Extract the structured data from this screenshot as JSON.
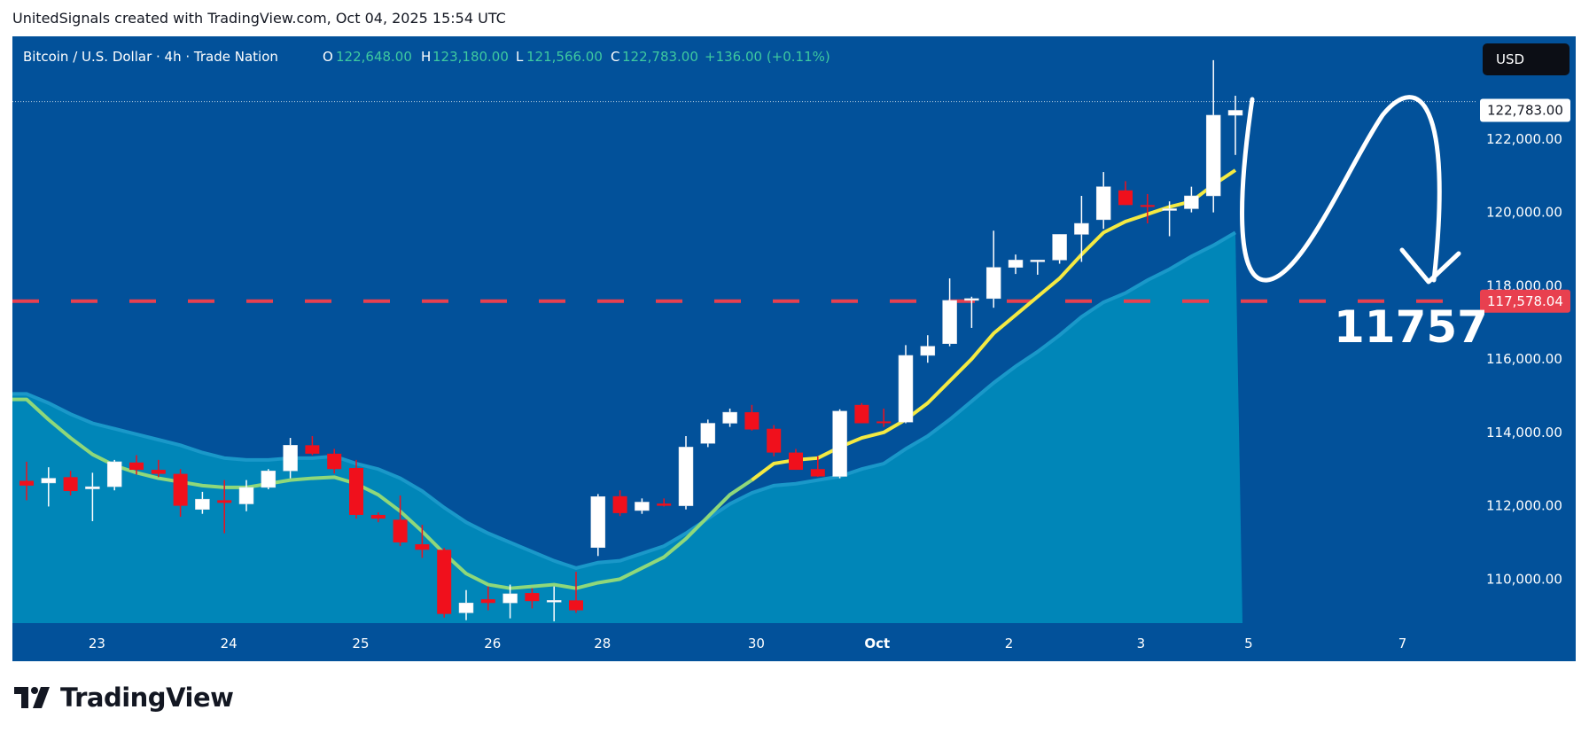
{
  "attribution": "UnitedSignals created with TradingView.com, Oct 04, 2025 15:54 UTC",
  "footer": {
    "brand": "TradingView"
  },
  "colors": {
    "background": "#02519a",
    "area": "#0086b8",
    "area_top": "#1a98c9",
    "candle_up": "#ffffff",
    "candle_down": "#f0101c",
    "ema_fast": "#f4ea42",
    "ema_slow": "#8fd87a",
    "level_line": "#e8404f",
    "text_on_blue": "#ffffff",
    "ohlc_value": "#3ec9a0"
  },
  "legend": {
    "symbol": "Bitcoin / U.S. Dollar · 4h · Trade Nation",
    "open_label": "O",
    "open": "122,648.00",
    "high_label": "H",
    "high": "123,180.00",
    "low_label": "L",
    "low": "121,566.00",
    "close_label": "C",
    "close": "122,783.00",
    "change": "+136.00 (+0.11%)"
  },
  "currency_button": "USD",
  "annotation_text": "11757",
  "chart_data": {
    "type": "candlestick",
    "title": "Bitcoin / U.S. Dollar · 4h · Trade Nation",
    "price_axis": {
      "min": 108800,
      "max": 124800,
      "ticks": [
        110000,
        112000,
        114000,
        116000,
        118000,
        120000,
        122000
      ],
      "tick_labels": [
        "110,000.00",
        "112,000.00",
        "114,000.00",
        "116,000.00",
        "118,000.00",
        "120,000.00",
        "122,000.00"
      ]
    },
    "time_axis": {
      "labels": [
        {
          "label": "23",
          "bar": 3.2
        },
        {
          "label": "24",
          "bar": 9.2
        },
        {
          "label": "25",
          "bar": 15.2
        },
        {
          "label": "26",
          "bar": 21.2
        },
        {
          "label": "28",
          "bar": 26.2
        },
        {
          "label": "30",
          "bar": 33.2
        },
        {
          "label": "Oct",
          "bar": 38.7
        },
        {
          "label": "2",
          "bar": 44.7
        },
        {
          "label": "3",
          "bar": 50.7
        },
        {
          "label": "5",
          "bar": 55.6
        },
        {
          "label": "7",
          "bar": 62.6
        }
      ]
    },
    "last_price": {
      "value": 122783,
      "label": "122,783.00"
    },
    "level": {
      "value": 117578.04,
      "label": "117,578.04"
    },
    "candles": [
      {
        "o": 112680,
        "h": 113200,
        "l": 112150,
        "c": 112550
      },
      {
        "o": 112620,
        "h": 113050,
        "l": 111980,
        "c": 112750
      },
      {
        "o": 112780,
        "h": 112950,
        "l": 112280,
        "c": 112400
      },
      {
        "o": 112460,
        "h": 112900,
        "l": 111580,
        "c": 112520
      },
      {
        "o": 112520,
        "h": 113250,
        "l": 112420,
        "c": 113200
      },
      {
        "o": 113180,
        "h": 113380,
        "l": 112850,
        "c": 112980
      },
      {
        "o": 112980,
        "h": 113250,
        "l": 112780,
        "c": 112870
      },
      {
        "o": 112870,
        "h": 113000,
        "l": 111700,
        "c": 112000
      },
      {
        "o": 111900,
        "h": 112380,
        "l": 111780,
        "c": 112180
      },
      {
        "o": 112150,
        "h": 112700,
        "l": 111250,
        "c": 112080
      },
      {
        "o": 112050,
        "h": 112700,
        "l": 111850,
        "c": 112500
      },
      {
        "o": 112500,
        "h": 113000,
        "l": 112450,
        "c": 112950
      },
      {
        "o": 112950,
        "h": 113850,
        "l": 112750,
        "c": 113650
      },
      {
        "o": 113650,
        "h": 113900,
        "l": 113380,
        "c": 113420
      },
      {
        "o": 113420,
        "h": 113550,
        "l": 112880,
        "c": 113000
      },
      {
        "o": 113030,
        "h": 113250,
        "l": 111650,
        "c": 111750
      },
      {
        "o": 111750,
        "h": 111820,
        "l": 111550,
        "c": 111650
      },
      {
        "o": 111620,
        "h": 112280,
        "l": 110900,
        "c": 111000
      },
      {
        "o": 110950,
        "h": 111480,
        "l": 110580,
        "c": 110800
      },
      {
        "o": 110800,
        "h": 110850,
        "l": 108950,
        "c": 109050
      },
      {
        "o": 109080,
        "h": 109700,
        "l": 108880,
        "c": 109350
      },
      {
        "o": 109450,
        "h": 109800,
        "l": 109150,
        "c": 109350
      },
      {
        "o": 109350,
        "h": 109850,
        "l": 108930,
        "c": 109600
      },
      {
        "o": 109620,
        "h": 109750,
        "l": 109200,
        "c": 109400
      },
      {
        "o": 109380,
        "h": 109800,
        "l": 108850,
        "c": 109420
      },
      {
        "o": 109420,
        "h": 110200,
        "l": 109080,
        "c": 109150
      },
      {
        "o": 110860,
        "h": 112320,
        "l": 110630,
        "c": 112250
      },
      {
        "o": 112260,
        "h": 112420,
        "l": 111720,
        "c": 111800
      },
      {
        "o": 111870,
        "h": 112200,
        "l": 111780,
        "c": 112100
      },
      {
        "o": 112060,
        "h": 112200,
        "l": 111980,
        "c": 112000
      },
      {
        "o": 112000,
        "h": 113900,
        "l": 111900,
        "c": 113600
      },
      {
        "o": 113700,
        "h": 114350,
        "l": 113600,
        "c": 114250
      },
      {
        "o": 114250,
        "h": 114650,
        "l": 114150,
        "c": 114550
      },
      {
        "o": 114550,
        "h": 114750,
        "l": 114050,
        "c": 114080
      },
      {
        "o": 114100,
        "h": 114200,
        "l": 113350,
        "c": 113450
      },
      {
        "o": 113450,
        "h": 113550,
        "l": 112980,
        "c": 112980
      },
      {
        "o": 113000,
        "h": 113350,
        "l": 112790,
        "c": 112800
      },
      {
        "o": 112800,
        "h": 114630,
        "l": 112750,
        "c": 114580
      },
      {
        "o": 114750,
        "h": 114800,
        "l": 114250,
        "c": 114250
      },
      {
        "o": 114300,
        "h": 114650,
        "l": 114150,
        "c": 114280
      },
      {
        "o": 114280,
        "h": 116380,
        "l": 114250,
        "c": 116100
      },
      {
        "o": 116100,
        "h": 116650,
        "l": 115900,
        "c": 116350
      },
      {
        "o": 116420,
        "h": 118200,
        "l": 116350,
        "c": 117600
      },
      {
        "o": 117600,
        "h": 117700,
        "l": 116850,
        "c": 117650
      },
      {
        "o": 117650,
        "h": 119500,
        "l": 117400,
        "c": 118500
      },
      {
        "o": 118500,
        "h": 118850,
        "l": 118320,
        "c": 118700
      },
      {
        "o": 118700,
        "h": 118700,
        "l": 118300,
        "c": 118700
      },
      {
        "o": 118700,
        "h": 119400,
        "l": 118600,
        "c": 119400
      },
      {
        "o": 119400,
        "h": 120450,
        "l": 118650,
        "c": 119700
      },
      {
        "o": 119800,
        "h": 121100,
        "l": 119550,
        "c": 120700
      },
      {
        "o": 120600,
        "h": 120850,
        "l": 120200,
        "c": 120200
      },
      {
        "o": 120200,
        "h": 120500,
        "l": 119700,
        "c": 120150
      },
      {
        "o": 120100,
        "h": 120300,
        "l": 119350,
        "c": 120100
      },
      {
        "o": 120100,
        "h": 120700,
        "l": 120000,
        "c": 120450
      },
      {
        "o": 120450,
        "h": 124150,
        "l": 120000,
        "c": 122650
      },
      {
        "o": 122648,
        "h": 123180,
        "l": 121566,
        "c": 122783
      }
    ],
    "ema_fast": [
      [
        0,
        114900
      ],
      [
        1,
        114350
      ],
      [
        2,
        113850
      ],
      [
        3,
        113400
      ],
      [
        4,
        113100
      ],
      [
        5,
        112900
      ],
      [
        6,
        112750
      ],
      [
        7,
        112650
      ],
      [
        8,
        112550
      ],
      [
        9,
        112500
      ],
      [
        10,
        112500
      ],
      [
        11,
        112600
      ],
      [
        12,
        112700
      ],
      [
        13,
        112750
      ],
      [
        14,
        112780
      ],
      [
        15,
        112600
      ],
      [
        16,
        112300
      ],
      [
        17,
        111850
      ],
      [
        18,
        111300
      ],
      [
        19,
        110700
      ],
      [
        20,
        110150
      ],
      [
        21,
        109850
      ],
      [
        22,
        109750
      ],
      [
        23,
        109800
      ],
      [
        24,
        109850
      ],
      [
        25,
        109750
      ],
      [
        26,
        109900
      ],
      [
        27,
        110000
      ],
      [
        28,
        110300
      ],
      [
        29,
        110600
      ],
      [
        30,
        111100
      ],
      [
        31,
        111700
      ],
      [
        32,
        112300
      ],
      [
        33,
        112700
      ],
      [
        34,
        113150
      ],
      [
        35,
        113250
      ],
      [
        36,
        113300
      ],
      [
        37,
        113600
      ],
      [
        38,
        113850
      ],
      [
        39,
        114000
      ],
      [
        40,
        114350
      ],
      [
        41,
        114800
      ],
      [
        42,
        115400
      ],
      [
        43,
        116000
      ],
      [
        44,
        116700
      ],
      [
        45,
        117200
      ],
      [
        46,
        117700
      ],
      [
        47,
        118200
      ],
      [
        48,
        118850
      ],
      [
        49,
        119450
      ],
      [
        50,
        119750
      ],
      [
        51,
        119950
      ],
      [
        52,
        120150
      ],
      [
        53,
        120300
      ],
      [
        54,
        120750
      ],
      [
        55,
        121150
      ]
    ],
    "ema_slow": [
      [
        0,
        115050
      ],
      [
        1,
        114800
      ],
      [
        2,
        114500
      ],
      [
        3,
        114250
      ],
      [
        4,
        114100
      ],
      [
        5,
        113950
      ],
      [
        6,
        113800
      ],
      [
        7,
        113650
      ],
      [
        8,
        113450
      ],
      [
        9,
        113300
      ],
      [
        10,
        113250
      ],
      [
        11,
        113250
      ],
      [
        12,
        113300
      ],
      [
        13,
        113300
      ],
      [
        14,
        113350
      ],
      [
        15,
        113150
      ],
      [
        16,
        113000
      ],
      [
        17,
        112750
      ],
      [
        18,
        112400
      ],
      [
        19,
        111950
      ],
      [
        20,
        111550
      ],
      [
        21,
        111250
      ],
      [
        22,
        111000
      ],
      [
        23,
        110750
      ],
      [
        24,
        110500
      ],
      [
        25,
        110300
      ],
      [
        26,
        110450
      ],
      [
        27,
        110500
      ],
      [
        28,
        110700
      ],
      [
        29,
        110900
      ],
      [
        30,
        111250
      ],
      [
        31,
        111650
      ],
      [
        32,
        112050
      ],
      [
        33,
        112350
      ],
      [
        34,
        112550
      ],
      [
        35,
        112600
      ],
      [
        36,
        112700
      ],
      [
        37,
        112800
      ],
      [
        38,
        113000
      ],
      [
        39,
        113150
      ],
      [
        40,
        113550
      ],
      [
        41,
        113900
      ],
      [
        42,
        114350
      ],
      [
        43,
        114850
      ],
      [
        44,
        115350
      ],
      [
        45,
        115800
      ],
      [
        46,
        116200
      ],
      [
        47,
        116650
      ],
      [
        48,
        117150
      ],
      [
        49,
        117550
      ],
      [
        50,
        117800
      ],
      [
        51,
        118150
      ],
      [
        52,
        118450
      ],
      [
        53,
        118800
      ],
      [
        54,
        119100
      ],
      [
        55,
        119450
      ]
    ]
  }
}
